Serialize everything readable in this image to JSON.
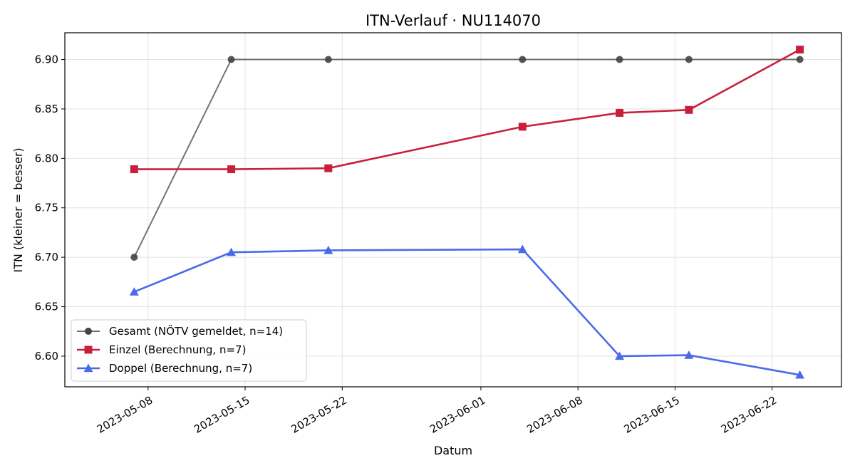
{
  "chart_data": {
    "type": "line",
    "title": "ITN-Verlauf · NU114070",
    "xlabel": "Datum",
    "ylabel": "ITN  (kleiner = besser)",
    "x_ticks": [
      "2023-05-08",
      "2023-05-15",
      "2023-05-22",
      "2023-06-01",
      "2023-06-08",
      "2023-06-15",
      "2023-06-22"
    ],
    "y_ticks": [
      "6.60",
      "6.65",
      "6.70",
      "6.75",
      "6.80",
      "6.85",
      "6.90"
    ],
    "xlim": [
      "2023-05-02",
      "2023-06-27"
    ],
    "ylim": [
      6.569,
      6.927
    ],
    "grid": true,
    "legend_position": "lower-left",
    "series": [
      {
        "name": "Gesamt (NÖTV gemeldet, n=14)",
        "color": "#444444",
        "marker": "circle",
        "x": [
          "2023-05-07",
          "2023-05-14",
          "2023-05-21",
          "2023-06-04",
          "2023-06-11",
          "2023-06-16",
          "2023-06-24"
        ],
        "values": [
          6.7,
          6.9,
          6.9,
          6.9,
          6.9,
          6.9,
          6.9
        ]
      },
      {
        "name": "Einzel (Berechnung, n=7)",
        "color": "#c8203c",
        "marker": "square",
        "x": [
          "2023-05-07",
          "2023-05-14",
          "2023-05-21",
          "2023-06-04",
          "2023-06-11",
          "2023-06-16",
          "2023-06-24"
        ],
        "values": [
          6.789,
          6.789,
          6.79,
          6.832,
          6.846,
          6.849,
          6.91
        ]
      },
      {
        "name": "Doppel (Berechnung, n=7)",
        "color": "#4a6be8",
        "marker": "triangle",
        "x": [
          "2023-05-07",
          "2023-05-14",
          "2023-05-21",
          "2023-06-04",
          "2023-06-11",
          "2023-06-16",
          "2023-06-24"
        ],
        "values": [
          6.665,
          6.705,
          6.707,
          6.708,
          6.6,
          6.601,
          6.581
        ]
      }
    ]
  }
}
